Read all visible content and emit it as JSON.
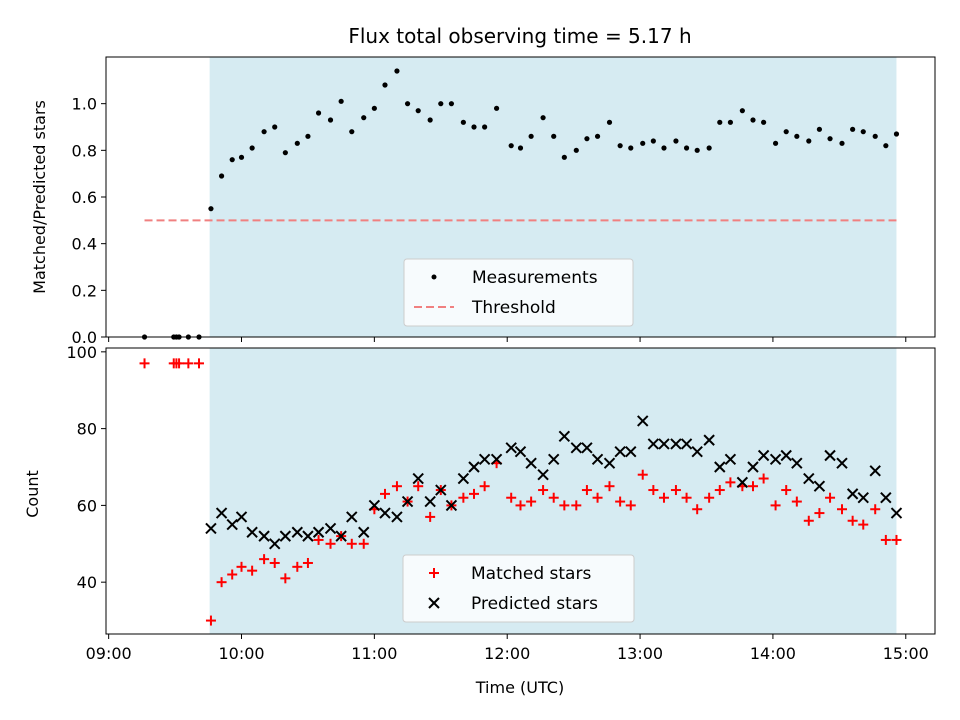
{
  "chart_data": [
    {
      "type": "scatter",
      "title": "Flux total observing time = 5.17 h",
      "xlabel": "",
      "ylabel": "Matched/Predicted stars",
      "xlim": [
        8.98,
        15.22
      ],
      "ylim": [
        0.0,
        1.2
      ],
      "yticks": [
        0.0,
        0.2,
        0.4,
        0.6,
        0.8,
        1.0
      ],
      "ytick_labels": [
        "0.0",
        "0.2",
        "0.4",
        "0.6",
        "0.8",
        "1.0"
      ],
      "shaded_interval": [
        9.76,
        14.93
      ],
      "shade_color": "#add8e6",
      "legend_position": "lower center",
      "series": [
        {
          "name": "Measurements",
          "marker": "dot",
          "color": "#000000",
          "x": [
            9.27,
            9.49,
            9.51,
            9.53,
            9.6,
            9.68,
            9.77,
            9.85,
            9.93,
            10.0,
            10.08,
            10.17,
            10.25,
            10.33,
            10.42,
            10.5,
            10.58,
            10.67,
            10.75,
            10.83,
            10.92,
            11.0,
            11.08,
            11.17,
            11.25,
            11.33,
            11.42,
            11.5,
            11.58,
            11.67,
            11.75,
            11.83,
            11.92,
            12.03,
            12.1,
            12.18,
            12.27,
            12.35,
            12.43,
            12.52,
            12.6,
            12.68,
            12.77,
            12.85,
            12.93,
            13.02,
            13.1,
            13.18,
            13.27,
            13.35,
            13.43,
            13.52,
            13.6,
            13.68,
            13.77,
            13.85,
            13.93,
            14.02,
            14.1,
            14.18,
            14.27,
            14.35,
            14.43,
            14.52,
            14.6,
            14.68,
            14.77,
            14.85,
            14.93
          ],
          "y": [
            0.0,
            0.0,
            0.0,
            0.0,
            0.0,
            0.0,
            0.55,
            0.69,
            0.76,
            0.77,
            0.81,
            0.88,
            0.9,
            0.79,
            0.83,
            0.86,
            0.96,
            0.93,
            1.01,
            0.88,
            0.94,
            0.98,
            1.08,
            1.14,
            1.0,
            0.97,
            0.93,
            1.0,
            1.0,
            0.92,
            0.9,
            0.9,
            0.98,
            0.82,
            0.81,
            0.86,
            0.94,
            0.86,
            0.77,
            0.8,
            0.85,
            0.86,
            0.92,
            0.82,
            0.81,
            0.83,
            0.84,
            0.81,
            0.84,
            0.81,
            0.8,
            0.81,
            0.92,
            0.92,
            0.97,
            0.93,
            0.92,
            0.83,
            0.88,
            0.86,
            0.84,
            0.89,
            0.85,
            0.83,
            0.89,
            0.88,
            0.86,
            0.82,
            0.87
          ]
        },
        {
          "name": "Threshold",
          "style": "dashed",
          "color": "#f08080",
          "x": [
            9.27,
            14.93
          ],
          "y": [
            0.5,
            0.5
          ]
        }
      ]
    },
    {
      "type": "scatter",
      "title": "",
      "xlabel": "Time (UTC)",
      "ylabel": "Count",
      "xlim": [
        8.98,
        15.22
      ],
      "ylim": [
        26.5,
        101
      ],
      "xticks": [
        9,
        10,
        11,
        12,
        13,
        14,
        15
      ],
      "xtick_labels": [
        "09:00",
        "10:00",
        "11:00",
        "12:00",
        "13:00",
        "14:00",
        "15:00"
      ],
      "yticks": [
        40,
        60,
        80,
        100
      ],
      "ytick_labels": [
        "40",
        "60",
        "80",
        "100"
      ],
      "shaded_interval": [
        9.76,
        14.93
      ],
      "shade_color": "#add8e6",
      "legend_position": "lower center",
      "series": [
        {
          "name": "Matched stars",
          "marker": "plus",
          "color": "#ff0000",
          "x": [
            9.27,
            9.49,
            9.51,
            9.53,
            9.6,
            9.68,
            9.77,
            9.85,
            9.93,
            10.0,
            10.08,
            10.17,
            10.25,
            10.33,
            10.42,
            10.5,
            10.58,
            10.67,
            10.75,
            10.83,
            10.92,
            11.0,
            11.08,
            11.17,
            11.25,
            11.33,
            11.42,
            11.5,
            11.58,
            11.67,
            11.75,
            11.83,
            11.92,
            12.03,
            12.1,
            12.18,
            12.27,
            12.35,
            12.43,
            12.52,
            12.6,
            12.68,
            12.77,
            12.85,
            12.93,
            13.02,
            13.1,
            13.18,
            13.27,
            13.35,
            13.43,
            13.52,
            13.6,
            13.68,
            13.77,
            13.85,
            13.93,
            14.02,
            14.1,
            14.18,
            14.27,
            14.35,
            14.43,
            14.52,
            14.6,
            14.68,
            14.77,
            14.85,
            14.93
          ],
          "y": [
            97,
            97,
            97,
            97,
            97,
            97,
            30,
            40,
            42,
            44,
            43,
            46,
            45,
            41,
            44,
            45,
            51,
            50,
            52,
            50,
            50,
            59,
            63,
            65,
            61,
            65,
            57,
            64,
            60,
            62,
            63,
            65,
            71,
            62,
            60,
            61,
            64,
            62,
            60,
            60,
            64,
            62,
            65,
            61,
            60,
            68,
            64,
            62,
            64,
            62,
            59,
            62,
            64,
            66,
            65,
            65,
            67,
            60,
            64,
            61,
            56,
            58,
            62,
            59,
            56,
            55,
            59,
            51,
            51
          ]
        },
        {
          "name": "Predicted stars",
          "marker": "x",
          "color": "#000000",
          "x": [
            9.77,
            9.85,
            9.93,
            10.0,
            10.08,
            10.17,
            10.25,
            10.33,
            10.42,
            10.5,
            10.58,
            10.67,
            10.75,
            10.83,
            10.92,
            11.0,
            11.08,
            11.17,
            11.25,
            11.33,
            11.42,
            11.5,
            11.58,
            11.67,
            11.75,
            11.83,
            11.92,
            12.03,
            12.1,
            12.18,
            12.27,
            12.35,
            12.43,
            12.52,
            12.6,
            12.68,
            12.77,
            12.85,
            12.93,
            13.02,
            13.1,
            13.18,
            13.27,
            13.35,
            13.43,
            13.52,
            13.6,
            13.68,
            13.77,
            13.85,
            13.93,
            14.02,
            14.1,
            14.18,
            14.27,
            14.35,
            14.43,
            14.52,
            14.6,
            14.68,
            14.77,
            14.85,
            14.93
          ],
          "y": [
            54,
            58,
            55,
            57,
            53,
            52,
            50,
            52,
            53,
            52,
            53,
            54,
            52,
            57,
            53,
            60,
            58,
            57,
            61,
            67,
            61,
            64,
            60,
            67,
            70,
            72,
            72,
            75,
            74,
            71,
            68,
            72,
            78,
            75,
            75,
            72,
            71,
            74,
            74,
            82,
            76,
            76,
            76,
            76,
            74,
            77,
            70,
            72,
            66,
            70,
            73,
            72,
            73,
            71,
            67,
            65,
            73,
            71,
            63,
            62,
            69,
            62,
            58
          ]
        }
      ]
    }
  ]
}
